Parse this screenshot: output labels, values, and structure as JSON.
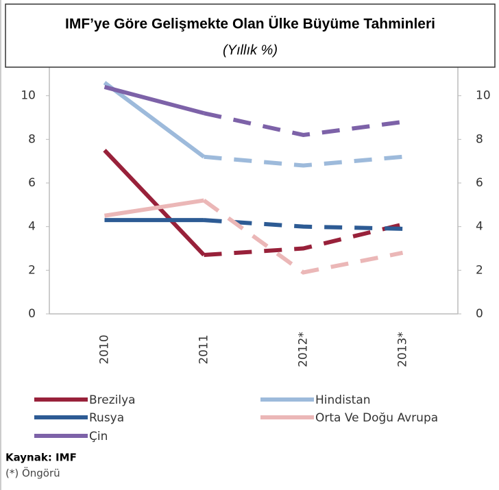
{
  "chart_data": {
    "type": "line",
    "title": "IMF’ye Göre Gelişmekte Olan Ülke Büyüme Tahminleri",
    "subtitle": "(Yıllık %)",
    "categories": [
      "2010",
      "2011",
      "2012*",
      "2013*"
    ],
    "series": [
      {
        "name": "Brezilya",
        "color": "#98213a",
        "values": [
          7.5,
          2.7,
          3.0,
          4.1
        ]
      },
      {
        "name": "Hindistan",
        "color": "#9dbadb",
        "values": [
          10.6,
          7.2,
          6.8,
          7.2
        ]
      },
      {
        "name": "Rusya",
        "color": "#2d5b94",
        "values": [
          4.3,
          4.3,
          4.0,
          3.9
        ]
      },
      {
        "name": "Orta Ve Doğu Avrupa",
        "color": "#ebb7b7",
        "values": [
          4.5,
          5.2,
          1.9,
          2.8
        ]
      },
      {
        "name": "Çin",
        "color": "#7d62a8",
        "values": [
          10.4,
          9.2,
          8.2,
          8.8
        ]
      }
    ],
    "ylim": [
      0,
      12
    ],
    "yticks": [
      0,
      2,
      4,
      6,
      8,
      10
    ],
    "y2lim": [
      0,
      12
    ],
    "y2ticks": [
      0,
      2,
      4,
      6,
      8,
      10
    ],
    "dashed_from_index": 1,
    "grid": false,
    "source": "Kaynak: IMF",
    "note": "(*) Öngörü"
  }
}
